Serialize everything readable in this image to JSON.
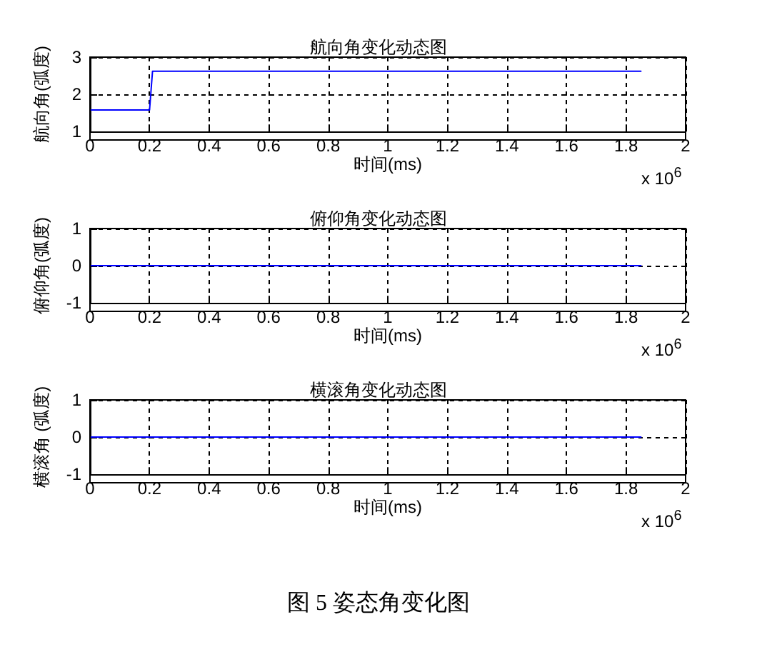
{
  "chart_data": [
    {
      "type": "line",
      "title": "航向角变化动态图",
      "xlabel": "时间(ms)",
      "ylabel": "航向角(弧度)",
      "x": [
        0,
        0.2,
        0.21,
        1.85
      ],
      "series": [
        {
          "color": "#0000ff",
          "values": [
            1.58,
            1.58,
            2.62,
            2.62
          ]
        }
      ],
      "xlim": [
        0,
        2
      ],
      "xticks": [
        0,
        0.2,
        0.4,
        0.6,
        0.8,
        1,
        1.2,
        1.4,
        1.6,
        1.8,
        2
      ],
      "ylim": [
        1,
        3
      ],
      "yticks": [
        1,
        2,
        3
      ],
      "grid": true,
      "marker": "none",
      "line_style": "solid",
      "annotations": [
        "x 10$^{6}$"
      ]
    },
    {
      "type": "line",
      "title": "俯仰角变化动态图",
      "xlabel": "时间(ms)",
      "ylabel": "俯仰角(弧度)",
      "x": [
        0,
        1.85
      ],
      "series": [
        {
          "color": "#0000ff",
          "values": [
            0,
            0
          ]
        }
      ],
      "xlim": [
        0,
        2
      ],
      "xticks": [
        0,
        0.2,
        0.4,
        0.6,
        0.8,
        1,
        1.2,
        1.4,
        1.6,
        1.8,
        2
      ],
      "ylim": [
        -1,
        1
      ],
      "yticks": [
        -1,
        0,
        1
      ],
      "grid": true,
      "marker": "none",
      "line_style": "solid",
      "annotations": [
        "x 10$^{6}$"
      ]
    },
    {
      "type": "line",
      "title": "横滚角变化动态图",
      "xlabel": "时间(ms)",
      "ylabel": "横滚角 (弧度)",
      "x": [
        0,
        1.85
      ],
      "series": [
        {
          "color": "#0000ff",
          "values": [
            0,
            0
          ]
        }
      ],
      "xlim": [
        0,
        2
      ],
      "xticks": [
        0,
        0.2,
        0.4,
        0.6,
        0.8,
        1,
        1.2,
        1.4,
        1.6,
        1.8,
        2
      ],
      "ylim": [
        -1,
        1
      ],
      "yticks": [
        -1,
        0,
        1
      ],
      "grid": true,
      "marker": "none",
      "line_style": "solid",
      "annotations": [
        "x 10$^{6}$",
        "图 5  姿态角变化图"
      ]
    }
  ]
}
